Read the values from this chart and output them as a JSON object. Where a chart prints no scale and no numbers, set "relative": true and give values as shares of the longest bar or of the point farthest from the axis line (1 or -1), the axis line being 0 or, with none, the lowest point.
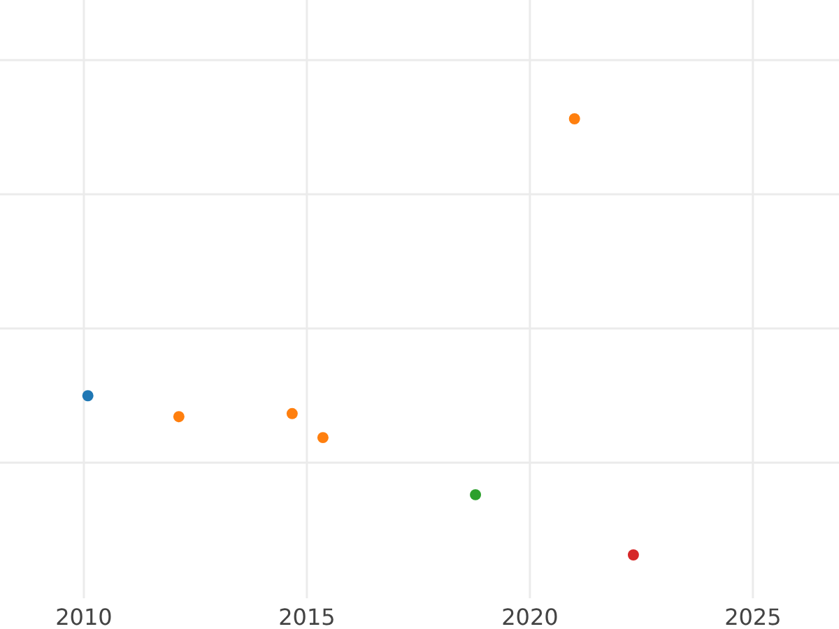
{
  "chart_data": {
    "type": "scatter",
    "relative": true,
    "grid": true,
    "marker": "circle",
    "xlim": [
      2008.12,
      2026.93
    ],
    "xticks": [
      2010,
      2015,
      2020,
      2025
    ],
    "series": [
      {
        "color": "#1f77b4",
        "x": [
          2010.09
        ],
        "values": [
          0.365
        ]
      },
      {
        "color": "#ff7f0e",
        "x": [
          2012.13,
          2014.67,
          2015.36,
          2021.0
        ],
        "values": [
          0.317,
          0.324,
          0.269,
          1
        ]
      },
      {
        "color": "#2ca02c",
        "x": [
          2018.78
        ],
        "values": [
          0.138
        ]
      },
      {
        "color": "#d62728",
        "x": [
          2022.32
        ],
        "values": [
          0
        ]
      }
    ]
  }
}
